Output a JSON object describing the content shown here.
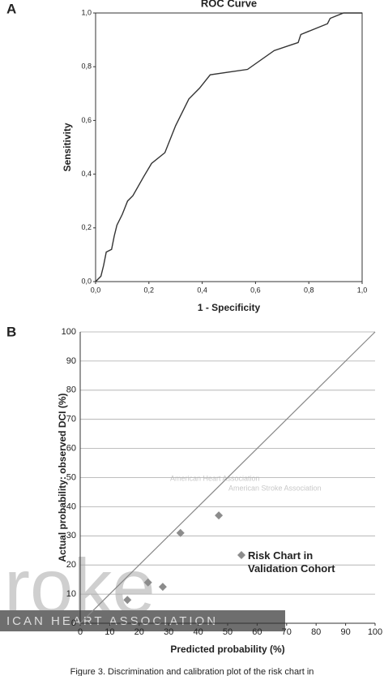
{
  "chart_data": [
    {
      "type": "line",
      "panel": "A",
      "title": "ROC Curve",
      "x_label": "1 - Specificity",
      "y_label": "Sensitivity",
      "x": [
        0,
        0.02,
        0.03,
        0.04,
        0.06,
        0.07,
        0.08,
        0.1,
        0.12,
        0.14,
        0.18,
        0.21,
        0.26,
        0.3,
        0.35,
        0.39,
        0.43,
        0.5,
        0.57,
        0.67,
        0.73,
        0.76,
        0.77,
        0.87,
        0.88,
        0.93,
        1.0
      ],
      "series": [
        {
          "color": "#333333",
          "values": [
            0,
            0.02,
            0.06,
            0.11,
            0.12,
            0.17,
            0.21,
            0.25,
            0.3,
            0.32,
            0.39,
            0.44,
            0.48,
            0.58,
            0.68,
            0.72,
            0.77,
            0.78,
            0.79,
            0.86,
            0.88,
            0.89,
            0.92,
            0.96,
            0.98,
            1.0,
            1.0
          ]
        }
      ],
      "xlim": [
        0,
        1
      ],
      "ylim": [
        0,
        1
      ],
      "xticks": [
        {
          "value": 0,
          "label": "0,0"
        },
        {
          "value": 0.2,
          "label": "0,2"
        },
        {
          "value": 0.4,
          "label": "0,4"
        },
        {
          "value": 0.6,
          "label": "0,6"
        },
        {
          "value": 0.8,
          "label": "0,8"
        },
        {
          "value": 1,
          "label": "1,0"
        }
      ],
      "yticks": [
        {
          "value": 0,
          "label": "0,0"
        },
        {
          "value": 0.2,
          "label": "0,2"
        },
        {
          "value": 0.4,
          "label": "0,4"
        },
        {
          "value": 0.6,
          "label": "0,6"
        },
        {
          "value": 0.8,
          "label": "0,8"
        },
        {
          "value": 1,
          "label": "1,0"
        }
      ],
      "grid": false
    },
    {
      "type": "scatter",
      "panel": "B",
      "x_label": "Predicted probability (%)",
      "y_label": "Actual probability: observed DCI (%)",
      "series": [
        {
          "name": "Risk Chart in Validation Cohort",
          "color": "#8c8c8c",
          "x": [
            16,
            23,
            28,
            34,
            47
          ],
          "values": [
            8,
            14,
            12.5,
            31,
            37
          ]
        }
      ],
      "xlim": [
        0,
        100
      ],
      "ylim": [
        0,
        100
      ],
      "xticks": [
        0,
        10,
        20,
        30,
        40,
        50,
        60,
        70,
        80,
        90,
        100
      ],
      "yticks": [
        0,
        10,
        20,
        30,
        40,
        50,
        60,
        70,
        80,
        90,
        100
      ],
      "grid": true
    }
  ],
  "watermark": [
    "roke",
    "ICAN HEART ASSOCIATION",
    "American Heart Association",
    "American Stroke Association"
  ],
  "caption": "Figure 3. Discrimination and calibration plot of the risk chart in"
}
